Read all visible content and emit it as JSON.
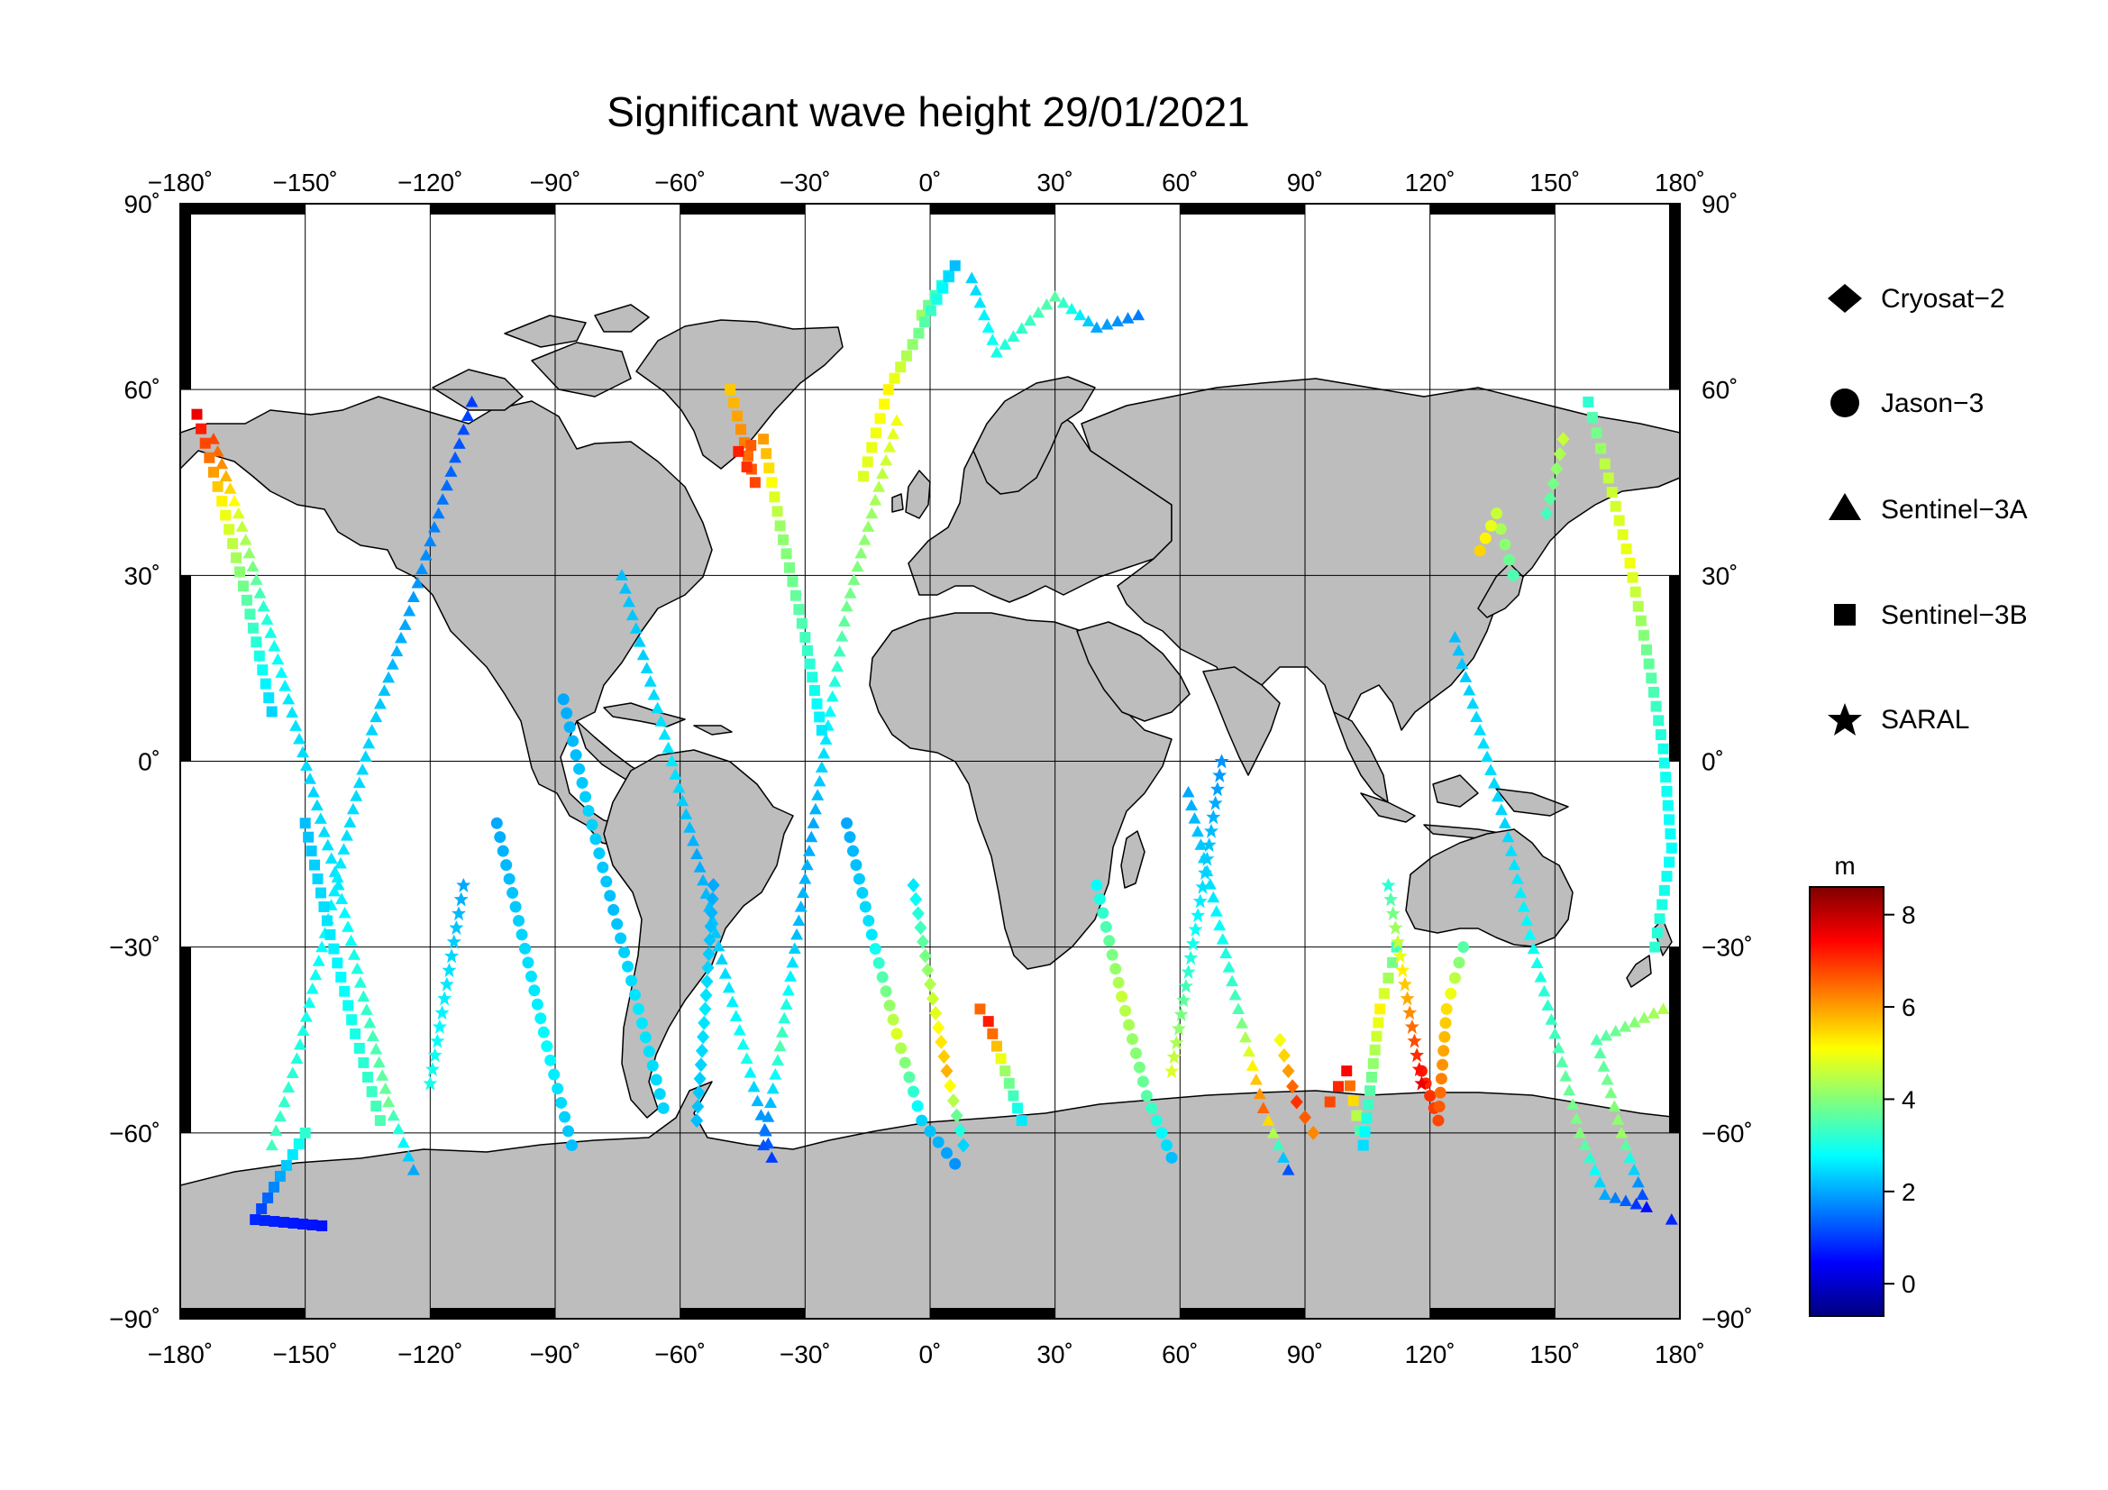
{
  "title": "Significant wave height 29/01/2021",
  "axes": {
    "lon_ticks": [
      -180,
      -150,
      -120,
      -90,
      -60,
      -30,
      0,
      30,
      60,
      90,
      120,
      150,
      180
    ],
    "lat_ticks": [
      90,
      60,
      30,
      0,
      -30,
      -60,
      -90
    ],
    "lon_labels": [
      "−180˚",
      "−150˚",
      "−120˚",
      "−90˚",
      "−60˚",
      "−30˚",
      "0˚",
      "30˚",
      "60˚",
      "90˚",
      "120˚",
      "150˚",
      "180˚"
    ],
    "lat_labels": [
      "90˚",
      "60˚",
      "30˚",
      "0˚",
      "−30˚",
      "−60˚",
      "−90˚"
    ],
    "lon_range": [
      -180,
      180
    ],
    "lat_range": [
      -90,
      90
    ]
  },
  "legend": {
    "items": [
      {
        "label": "Cryosat−2",
        "symbol": "diamond-icon"
      },
      {
        "label": "Jason−3",
        "symbol": "circle-icon"
      },
      {
        "label": "Sentinel−3A",
        "symbol": "triangle-icon"
      },
      {
        "label": "Sentinel−3B",
        "symbol": "square-icon"
      },
      {
        "label": "SARAL",
        "symbol": "star-icon"
      }
    ]
  },
  "colorbar": {
    "unit": "m",
    "min": -0.7,
    "max": 8.6,
    "ticks": [
      0,
      2,
      4,
      6,
      8
    ],
    "tick_labels": [
      "0",
      "2",
      "4",
      "6",
      "8"
    ],
    "colormap": [
      "#00007f",
      "#0000ff",
      "#007fff",
      "#00ffff",
      "#7fff7f",
      "#ffff00",
      "#ff7f00",
      "#ff0000",
      "#7f0000"
    ]
  },
  "colors": {
    "land": "#bdbdbd",
    "ocean": "#ffffff",
    "frame": "#000000"
  },
  "chart_data": {
    "type": "scatter",
    "title": "Significant wave height 29/01/2021",
    "xlim": [
      -180,
      180
    ],
    "ylim": [
      -90,
      90
    ],
    "color_variable": "significant wave height (m)",
    "series": [
      {
        "name": "Sentinel−3A",
        "marker": "triangle",
        "points": [
          [
            -172,
            52,
            6.8
          ],
          [
            -166,
            40,
            4.8
          ],
          [
            -160,
            25,
            3.2
          ],
          [
            -154,
            10,
            2.6
          ],
          [
            -148,
            -5,
            2.4
          ],
          [
            -142,
            -20,
            2.6
          ],
          [
            -136,
            -38,
            3.2
          ],
          [
            -130,
            -55,
            3.8
          ],
          [
            -124,
            -66,
            2.0
          ],
          [
            -110,
            58,
            1.0
          ],
          [
            -118,
            40,
            1.6
          ],
          [
            -126,
            22,
            2.0
          ],
          [
            -134,
            5,
            2.4
          ],
          [
            -140,
            -12,
            2.5
          ],
          [
            -146,
            -30,
            2.8
          ],
          [
            -152,
            -48,
            3.1
          ],
          [
            -158,
            -62,
            3.4
          ],
          [
            -74,
            30,
            2.2
          ],
          [
            -68,
            15,
            2.4
          ],
          [
            -62,
            0,
            2.6
          ],
          [
            -56,
            -15,
            2.0
          ],
          [
            -50,
            -32,
            2.4
          ],
          [
            -44,
            -48,
            3.0
          ],
          [
            -38,
            -64,
            1.0
          ],
          [
            -8,
            55,
            5.0
          ],
          [
            -14,
            40,
            4.2
          ],
          [
            -20,
            25,
            3.8
          ],
          [
            -24,
            8,
            2.8
          ],
          [
            -28,
            -10,
            2.0
          ],
          [
            -32,
            -28,
            2.2
          ],
          [
            -36,
            -46,
            3.5
          ],
          [
            -40,
            -62,
            1.2
          ],
          [
            10,
            78,
            2.4
          ],
          [
            16,
            66,
            3.0
          ],
          [
            30,
            75,
            3.6
          ],
          [
            40,
            70,
            2.0
          ],
          [
            50,
            72,
            1.6
          ],
          [
            62,
            -5,
            2.0
          ],
          [
            68,
            -22,
            2.6
          ],
          [
            74,
            -40,
            3.5
          ],
          [
            80,
            -56,
            6.5
          ],
          [
            86,
            -66,
            1.2
          ],
          [
            126,
            20,
            2.2
          ],
          [
            132,
            5,
            2.5
          ],
          [
            138,
            -10,
            2.4
          ],
          [
            144,
            -28,
            2.8
          ],
          [
            150,
            -44,
            3.4
          ],
          [
            156,
            -60,
            4.0
          ],
          [
            162,
            -70,
            2.0
          ],
          [
            172,
            -72,
            0.6
          ],
          [
            166,
            -60,
            4.2
          ],
          [
            160,
            -45,
            3.5
          ],
          [
            176,
            -40,
            4.4
          ],
          [
            178,
            -74,
            0.8
          ]
        ]
      },
      {
        "name": "Sentinel−3B",
        "marker": "square",
        "points": [
          [
            -176,
            56,
            7.6
          ],
          [
            -170,
            42,
            5.2
          ],
          [
            -164,
            26,
            3.6
          ],
          [
            -158,
            8,
            2.4
          ],
          [
            -150,
            -60,
            3.2
          ],
          [
            -162,
            -74,
            0.8
          ],
          [
            -146,
            -75,
            0.6
          ],
          [
            -150,
            -10,
            2.2
          ],
          [
            -144,
            -28,
            2.6
          ],
          [
            -138,
            -44,
            3.0
          ],
          [
            -132,
            -58,
            3.5
          ],
          [
            -48,
            60,
            5.6
          ],
          [
            -42,
            45,
            6.8
          ],
          [
            -46,
            50,
            7.2
          ],
          [
            -40,
            52,
            6.0
          ],
          [
            -36,
            38,
            4.2
          ],
          [
            -30,
            20,
            3.4
          ],
          [
            -26,
            5,
            2.6
          ],
          [
            -2,
            72,
            4.2
          ],
          [
            6,
            80,
            2.2
          ],
          [
            -10,
            60,
            5.2
          ],
          [
            -16,
            46,
            4.8
          ],
          [
            12,
            -40,
            6.5
          ],
          [
            14,
            -42,
            7.2
          ],
          [
            18,
            -50,
            4.2
          ],
          [
            22,
            -58,
            2.6
          ],
          [
            96,
            -55,
            6.8
          ],
          [
            100,
            -50,
            7.4
          ],
          [
            104,
            -62,
            2.5
          ],
          [
            108,
            -40,
            5.2
          ],
          [
            112,
            -30,
            3.4
          ],
          [
            158,
            58,
            3.2
          ],
          [
            162,
            48,
            4.5
          ],
          [
            168,
            32,
            5.0
          ],
          [
            172,
            18,
            3.8
          ],
          [
            176,
            2,
            3.0
          ],
          [
            178,
            -14,
            2.8
          ],
          [
            174,
            -30,
            3.2
          ]
        ]
      },
      {
        "name": "Jason−3",
        "marker": "circle",
        "points": [
          [
            -88,
            10,
            2.0
          ],
          [
            -82,
            -8,
            2.4
          ],
          [
            -76,
            -24,
            2.2
          ],
          [
            -70,
            -40,
            2.6
          ],
          [
            -64,
            -56,
            2.4
          ],
          [
            -104,
            -10,
            2.0
          ],
          [
            -98,
            -28,
            2.4
          ],
          [
            -92,
            -46,
            2.8
          ],
          [
            -86,
            -62,
            2.2
          ],
          [
            -20,
            -10,
            2.0
          ],
          [
            -14,
            -28,
            2.6
          ],
          [
            -8,
            -44,
            4.8
          ],
          [
            -2,
            -58,
            2.4
          ],
          [
            6,
            -65,
            1.8
          ],
          [
            40,
            -20,
            2.8
          ],
          [
            46,
            -38,
            4.6
          ],
          [
            52,
            -54,
            3.6
          ],
          [
            58,
            -64,
            2.2
          ],
          [
            118,
            -50,
            7.2
          ],
          [
            122,
            -58,
            6.8
          ],
          [
            124,
            -40,
            5.4
          ],
          [
            128,
            -30,
            3.6
          ],
          [
            140,
            30,
            3.5
          ],
          [
            136,
            40,
            4.6
          ],
          [
            132,
            34,
            5.5
          ]
        ]
      },
      {
        "name": "Cryosat−2",
        "marker": "diamond",
        "points": [
          [
            -52,
            -20,
            2.0
          ],
          [
            -54,
            -40,
            2.6
          ],
          [
            -56,
            -58,
            2.2
          ],
          [
            -4,
            -20,
            2.6
          ],
          [
            0,
            -36,
            4.4
          ],
          [
            4,
            -50,
            5.8
          ],
          [
            8,
            -62,
            2.4
          ],
          [
            84,
            -45,
            5.0
          ],
          [
            88,
            -55,
            7.0
          ],
          [
            92,
            -60,
            6.2
          ],
          [
            148,
            40,
            3.4
          ],
          [
            152,
            52,
            4.6
          ]
        ]
      },
      {
        "name": "SARAL",
        "marker": "star",
        "points": [
          [
            -112,
            -20,
            2.0
          ],
          [
            -116,
            -36,
            2.6
          ],
          [
            -120,
            -52,
            3.0
          ],
          [
            70,
            0,
            1.8
          ],
          [
            66,
            -18,
            2.4
          ],
          [
            62,
            -34,
            3.2
          ],
          [
            58,
            -50,
            4.8
          ],
          [
            110,
            -20,
            3.2
          ],
          [
            114,
            -36,
            5.6
          ],
          [
            118,
            -52,
            7.6
          ]
        ]
      }
    ]
  }
}
